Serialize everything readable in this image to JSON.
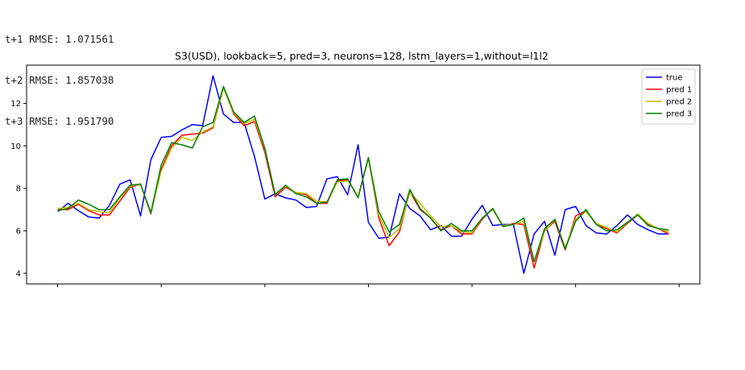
{
  "output_lines": [
    "t+1 RMSE: 1.071561",
    "t+2 RMSE: 1.857038",
    "t+3 RMSE: 1.951790"
  ],
  "chart_data": {
    "type": "line",
    "title": "S3(USD), lookback=5, pred=3, neurons=128, lstm_layers=1,without=l1l2",
    "xlabel": "",
    "ylabel": "",
    "xlim": [
      -3,
      62
    ],
    "ylim": [
      3.5,
      13.8
    ],
    "xticks": [
      0,
      10,
      20,
      30,
      40,
      50,
      60
    ],
    "yticks": [
      4,
      6,
      8,
      10,
      12
    ],
    "grid": false,
    "legend_position": "top-right",
    "x": [
      0,
      1,
      2,
      3,
      4,
      5,
      6,
      7,
      8,
      9,
      10,
      11,
      12,
      13,
      14,
      15,
      16,
      17,
      18,
      19,
      20,
      21,
      22,
      23,
      24,
      25,
      26,
      27,
      28,
      29,
      30,
      31,
      32,
      33,
      34,
      35,
      36,
      37,
      38,
      39,
      40,
      41,
      42,
      43,
      44,
      45,
      46,
      47,
      48,
      49,
      50,
      51,
      52,
      53,
      54,
      55,
      56,
      57,
      58,
      59
    ],
    "series": [
      {
        "name": "true",
        "color": "#0000ff",
        "values": [
          6.9,
          7.3,
          6.95,
          6.65,
          6.6,
          7.2,
          8.2,
          8.4,
          6.7,
          9.35,
          10.4,
          10.45,
          10.75,
          11.0,
          10.95,
          13.3,
          11.5,
          11.1,
          11.1,
          9.5,
          7.5,
          7.75,
          7.55,
          7.45,
          7.1,
          7.15,
          8.45,
          8.55,
          7.7,
          10.05,
          6.4,
          5.65,
          5.7,
          7.75,
          7.05,
          6.7,
          6.05,
          6.25,
          5.75,
          5.75,
          6.55,
          7.2,
          6.25,
          6.3,
          6.3,
          4.0,
          5.85,
          6.45,
          4.85,
          7.0,
          7.15,
          6.25,
          5.9,
          5.85,
          6.25,
          6.75,
          6.3,
          6.05,
          5.85,
          5.85
        ]
      },
      {
        "name": "pred 1",
        "color": "#ff0000",
        "values": [
          7.0,
          7.0,
          7.25,
          6.95,
          6.75,
          6.75,
          7.4,
          8.05,
          8.2,
          6.8,
          8.9,
          10.0,
          10.5,
          10.55,
          10.6,
          10.85,
          12.75,
          11.5,
          10.95,
          11.15,
          9.7,
          7.6,
          8.05,
          7.8,
          7.7,
          7.3,
          7.3,
          8.35,
          8.4,
          7.6,
          9.45,
          6.6,
          5.3,
          5.95,
          7.85,
          7.0,
          6.6,
          6.05,
          6.25,
          5.85,
          5.85,
          6.55,
          7.05,
          6.2,
          6.35,
          6.3,
          4.25,
          6.0,
          6.45,
          5.1,
          6.7,
          6.95,
          6.3,
          6.1,
          5.9,
          6.35,
          6.75,
          6.3,
          6.1,
          5.85
        ]
      },
      {
        "name": "pred 2",
        "color": "#bfbf00",
        "values": [
          7.05,
          7.1,
          7.3,
          7.0,
          6.9,
          6.85,
          7.55,
          8.1,
          8.2,
          6.85,
          8.8,
          9.9,
          10.4,
          10.25,
          10.65,
          10.9,
          12.7,
          11.55,
          11.05,
          11.25,
          9.85,
          7.75,
          8.1,
          7.8,
          7.75,
          7.4,
          7.35,
          8.3,
          8.35,
          7.6,
          9.4,
          6.75,
          5.7,
          6.1,
          7.8,
          7.3,
          6.7,
          6.2,
          6.25,
          5.95,
          5.9,
          6.6,
          7.0,
          6.25,
          6.3,
          6.45,
          4.55,
          5.95,
          6.55,
          5.2,
          6.55,
          6.9,
          6.35,
          6.15,
          5.95,
          6.4,
          6.8,
          6.35,
          6.1,
          5.95
        ]
      },
      {
        "name": "pred 3",
        "color": "#008000",
        "values": [
          6.95,
          7.05,
          7.45,
          7.25,
          7.0,
          7.0,
          7.6,
          8.15,
          8.2,
          6.85,
          9.1,
          10.15,
          10.05,
          9.9,
          10.9,
          11.1,
          12.8,
          11.6,
          11.1,
          11.4,
          9.9,
          7.7,
          8.15,
          7.75,
          7.6,
          7.3,
          7.35,
          8.4,
          8.45,
          7.55,
          9.45,
          6.9,
          5.95,
          6.3,
          7.95,
          7.05,
          6.6,
          6.0,
          6.35,
          6.0,
          6.0,
          6.6,
          7.05,
          6.2,
          6.3,
          6.6,
          4.55,
          6.1,
          6.55,
          5.15,
          6.45,
          7.0,
          6.3,
          6.0,
          6.05,
          6.4,
          6.75,
          6.25,
          6.1,
          6.05
        ]
      }
    ]
  }
}
